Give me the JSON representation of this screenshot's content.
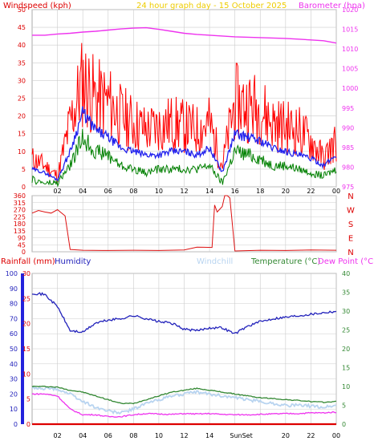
{
  "header": {
    "graph_title": "24 hour graph day - 15 October 2025",
    "windspeed_label": "Windspeed (kph)",
    "barometer_label": "Barometer (hpa)"
  },
  "colors": {
    "wind_gust": "#ff0000",
    "wind_avg": "#2222ee",
    "wind_low": "#008000",
    "barometer": "#ee33ee",
    "direction": "#dd1111",
    "humidity": "#2222bb",
    "windchill": "#b8d4f0",
    "temperature": "#338833",
    "dew_point": "#ee33ee",
    "rainfall": "#dd0000",
    "title": "#eecc00",
    "grid": "#cccccc"
  },
  "x_hour_labels": [
    "02",
    "04",
    "06",
    "08",
    "10",
    "12",
    "14",
    "16",
    "18",
    "20",
    "22",
    "00"
  ],
  "bottom_x_hour_labels": [
    "02",
    "04",
    "06",
    "08",
    "10",
    "12",
    "14",
    "SunSet",
    "20",
    "22",
    "00"
  ],
  "chart_data": [
    {
      "type": "line",
      "title": "Windspeed (kph)",
      "ylabel": "Windspeed (kph)",
      "y2label": "Barometer (hpa)",
      "ylim": [
        0,
        50
      ],
      "y2lim": [
        975,
        1020
      ],
      "y_ticks": [
        0,
        5,
        10,
        15,
        20,
        25,
        30,
        35,
        40,
        45,
        50
      ],
      "y2_ticks": [
        975,
        980,
        985,
        990,
        995,
        1000,
        1005,
        1010,
        1015,
        1020
      ],
      "x_hours": [
        0,
        1,
        2,
        3,
        4,
        5,
        6,
        7,
        8,
        9,
        10,
        11,
        12,
        13,
        14,
        15,
        16,
        17,
        18,
        19,
        20,
        21,
        22,
        23,
        24
      ],
      "series": [
        {
          "name": "gust",
          "values": [
            8,
            6,
            3,
            18,
            30,
            25,
            24,
            20,
            18,
            16,
            17,
            18,
            17,
            16,
            18,
            6,
            24,
            23,
            22,
            18,
            17,
            16,
            13,
            8,
            13
          ]
        },
        {
          "name": "average",
          "values": [
            5,
            4,
            2,
            10,
            21,
            16,
            14,
            11,
            10,
            9,
            9,
            10,
            10,
            9,
            11,
            4,
            15,
            14,
            13,
            11,
            10,
            9,
            8,
            6,
            9
          ]
        },
        {
          "name": "low",
          "values": [
            2,
            1,
            1,
            6,
            14,
            10,
            9,
            6,
            5,
            4,
            5,
            5,
            5,
            5,
            6,
            1,
            10,
            9,
            8,
            6,
            6,
            5,
            4,
            3,
            5
          ]
        },
        {
          "name": "barometer",
          "values": [
            1013.5,
            1013.5,
            1013.8,
            1014.0,
            1014.3,
            1014.5,
            1014.8,
            1015.1,
            1015.3,
            1015.4,
            1015.0,
            1014.5,
            1014.0,
            1013.7,
            1013.5,
            1013.3,
            1013.1,
            1013.0,
            1012.9,
            1012.8,
            1012.7,
            1012.5,
            1012.3,
            1012.1,
            1011.5
          ]
        }
      ]
    },
    {
      "type": "line",
      "ylabel": "Direction",
      "ylim": [
        0,
        360
      ],
      "y_ticks": [
        0,
        45,
        90,
        135,
        180,
        225,
        270,
        315,
        360
      ],
      "direction_letters": [
        "N",
        "W",
        "S",
        "E",
        "N"
      ],
      "x_hours": [
        0,
        0.5,
        1,
        1.5,
        2,
        2.6,
        3,
        4,
        6,
        8,
        10,
        12,
        13,
        14.2,
        14.4,
        14.6,
        15.0,
        15.2,
        15.4,
        15.6,
        16.0,
        18,
        20,
        22,
        24
      ],
      "series": [
        {
          "name": "wind direction",
          "values": [
            248,
            265,
            255,
            248,
            270,
            230,
            15,
            10,
            8,
            10,
            8,
            12,
            30,
            28,
            300,
            255,
            290,
            360,
            360,
            345,
            5,
            10,
            8,
            12,
            10
          ]
        }
      ]
    },
    {
      "type": "line",
      "title": "Rainfall (mm) Humidity Windchill Temperature (°C) Dew Point (°C)",
      "y_humidity_lim": [
        0,
        100
      ],
      "y_rain_lim": [
        0,
        30
      ],
      "y_temp_lim": [
        0,
        40
      ],
      "y_humidity_ticks": [
        0,
        10,
        20,
        30,
        40,
        50,
        60,
        70,
        80,
        90,
        100
      ],
      "y_rain_ticks": [
        0,
        5,
        10,
        15,
        20,
        25,
        30
      ],
      "y_temp_ticks": [
        0,
        5,
        10,
        15,
        20,
        25,
        30,
        35,
        40
      ],
      "x_hours": [
        0,
        1,
        2,
        3,
        4,
        5,
        6,
        7,
        8,
        9,
        10,
        11,
        12,
        13,
        14,
        15,
        16,
        17,
        18,
        19,
        20,
        21,
        22,
        23,
        24
      ],
      "series": [
        {
          "name": "Humidity",
          "axis": "humidity",
          "values": [
            87,
            86,
            78,
            62,
            61,
            67,
            69,
            70,
            72,
            70,
            68,
            67,
            63,
            62,
            64,
            64,
            60,
            65,
            68,
            70,
            71,
            72,
            73,
            74,
            75
          ]
        },
        {
          "name": "Windchill",
          "axis": "temp",
          "values": [
            9.5,
            9.5,
            9.3,
            8.0,
            6.0,
            4.5,
            3.5,
            3.0,
            4.0,
            5.5,
            6.5,
            7.5,
            8.0,
            8.5,
            8.0,
            7.5,
            7.0,
            6.5,
            6.0,
            5.5,
            5.0,
            5.0,
            4.8,
            4.5,
            5.0
          ]
        },
        {
          "name": "Temperature (°C)",
          "axis": "temp",
          "values": [
            10.0,
            10.0,
            9.8,
            9.0,
            8.5,
            7.5,
            6.5,
            5.5,
            5.5,
            6.5,
            7.5,
            8.5,
            9.0,
            9.5,
            9.0,
            8.5,
            8.0,
            7.5,
            7.0,
            6.8,
            6.5,
            6.3,
            6.0,
            5.8,
            6.0
          ]
        },
        {
          "name": "Dew Point (°C)",
          "axis": "temp",
          "values": [
            8.0,
            8.0,
            7.5,
            4.0,
            2.5,
            2.5,
            2.0,
            2.0,
            2.5,
            2.8,
            2.7,
            2.6,
            2.8,
            2.7,
            2.8,
            2.6,
            2.5,
            2.5,
            2.6,
            2.7,
            2.8,
            2.8,
            3.0,
            3.0,
            3.2
          ]
        },
        {
          "name": "Rainfall (mm)",
          "axis": "rain",
          "values": [
            0,
            0,
            0,
            0,
            0,
            0,
            0,
            0,
            0,
            0,
            0,
            0,
            0,
            0,
            0,
            0,
            0,
            0,
            0,
            0,
            0,
            0,
            0,
            0,
            0
          ]
        }
      ]
    }
  ],
  "legend": {
    "rainfall": "Rainfall (mm)",
    "humidity": "Humidity",
    "windchill": "Windchill",
    "temperature": "Temperature (°C)",
    "dew_point": "Dew Point (°C)"
  }
}
